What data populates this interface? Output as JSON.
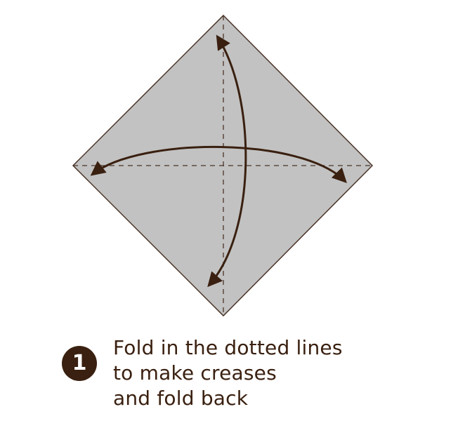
{
  "step": {
    "number": "1",
    "lines": [
      "Fold in the dotted lines",
      "to make creases",
      "and fold back"
    ]
  },
  "colors": {
    "paper": "#c2c2c2",
    "ink": "#3a2010",
    "outline": "#4a3428"
  }
}
